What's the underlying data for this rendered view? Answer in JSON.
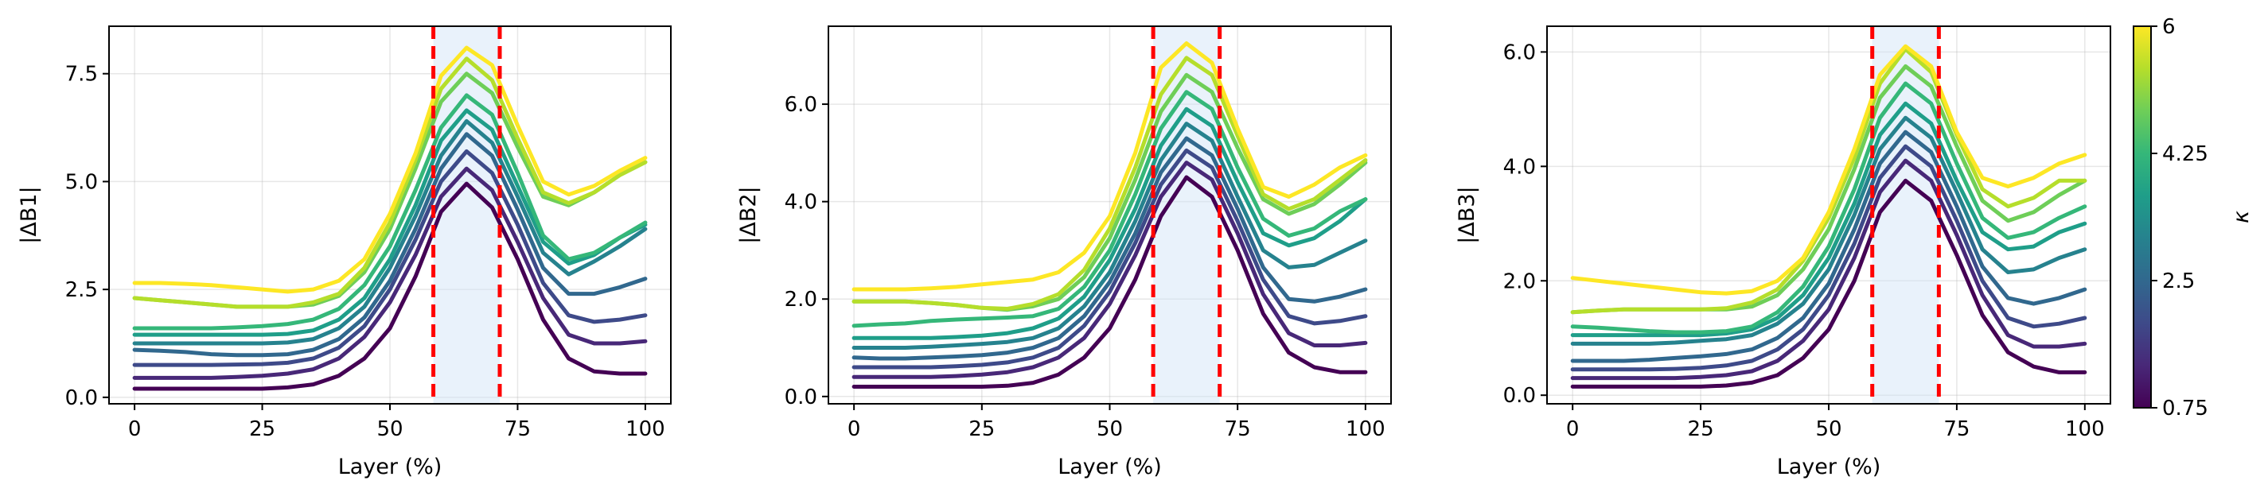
{
  "colors": {
    "marker": "#ff0000",
    "band": "#cfe3f7",
    "colormap": [
      "#440154",
      "#482878",
      "#3e4a89",
      "#31688e",
      "#26828e",
      "#1f9e89",
      "#35b779",
      "#6ece58",
      "#b5de2b",
      "#fde725"
    ]
  },
  "colorbar": {
    "label": "κ",
    "range": [
      0.75,
      6
    ],
    "ticks": [
      "0.75",
      "2.5",
      "4.25",
      "6"
    ]
  },
  "chart_data": [
    {
      "type": "line",
      "title": "",
      "xlabel": "Layer (%)",
      "ylabel": "|ΔB1|",
      "xlim": [
        -5,
        105
      ],
      "ylim": [
        -0.15,
        8.6
      ],
      "xticks": [
        "0",
        "25",
        "50",
        "75",
        "100"
      ],
      "yticks": [
        "0.0",
        "2.5",
        "5.0",
        "7.5"
      ],
      "band": [
        58.5,
        71.5
      ],
      "markers": [
        58.5,
        71.5
      ],
      "x": [
        0,
        5,
        10,
        15,
        20,
        25,
        30,
        35,
        40,
        45,
        50,
        55,
        60,
        65,
        70,
        75,
        80,
        85,
        90,
        95,
        100
      ],
      "series": [
        {
          "name": "κ=0.75",
          "values": [
            0.2,
            0.2,
            0.2,
            0.2,
            0.2,
            0.2,
            0.23,
            0.3,
            0.5,
            0.9,
            1.6,
            2.8,
            4.3,
            4.95,
            4.4,
            3.2,
            1.8,
            0.9,
            0.6,
            0.55,
            0.55
          ]
        },
        {
          "name": "κ=1.33",
          "values": [
            0.45,
            0.45,
            0.45,
            0.45,
            0.47,
            0.5,
            0.55,
            0.65,
            0.9,
            1.4,
            2.2,
            3.3,
            4.65,
            5.3,
            4.8,
            3.6,
            2.3,
            1.45,
            1.25,
            1.25,
            1.3
          ]
        },
        {
          "name": "κ=1.92",
          "values": [
            0.75,
            0.75,
            0.75,
            0.75,
            0.76,
            0.77,
            0.8,
            0.9,
            1.15,
            1.65,
            2.5,
            3.65,
            5.0,
            5.7,
            5.2,
            4.0,
            2.65,
            1.9,
            1.75,
            1.8,
            1.9
          ]
        },
        {
          "name": "κ=2.5",
          "values": [
            1.1,
            1.08,
            1.05,
            1.0,
            0.98,
            0.98,
            1.0,
            1.1,
            1.35,
            1.85,
            2.7,
            3.9,
            5.3,
            6.1,
            5.6,
            4.35,
            3.0,
            2.4,
            2.4,
            2.55,
            2.75
          ]
        },
        {
          "name": "κ=3.08",
          "values": [
            1.25,
            1.25,
            1.25,
            1.25,
            1.25,
            1.25,
            1.27,
            1.35,
            1.6,
            2.1,
            3.0,
            4.2,
            5.6,
            6.4,
            5.9,
            4.65,
            3.35,
            2.85,
            3.15,
            3.5,
            3.9
          ]
        },
        {
          "name": "κ=3.67",
          "values": [
            1.45,
            1.45,
            1.45,
            1.45,
            1.45,
            1.45,
            1.47,
            1.55,
            1.8,
            2.3,
            3.2,
            4.45,
            5.95,
            6.65,
            6.2,
            4.9,
            3.6,
            3.1,
            3.3,
            3.7,
            4.0
          ]
        },
        {
          "name": "κ=4.25",
          "values": [
            1.6,
            1.6,
            1.6,
            1.6,
            1.62,
            1.65,
            1.7,
            1.8,
            2.05,
            2.6,
            3.5,
            4.8,
            6.25,
            7.0,
            6.55,
            5.2,
            3.75,
            3.2,
            3.35,
            3.7,
            4.05
          ]
        },
        {
          "name": "κ=4.83",
          "values": [
            2.3,
            2.25,
            2.2,
            2.15,
            2.1,
            2.1,
            2.1,
            2.15,
            2.35,
            2.9,
            3.9,
            5.3,
            6.85,
            7.5,
            7.05,
            5.8,
            4.65,
            4.45,
            4.75,
            5.15,
            5.45
          ]
        },
        {
          "name": "κ=5.42",
          "values": [
            2.3,
            2.25,
            2.2,
            2.15,
            2.1,
            2.1,
            2.1,
            2.2,
            2.4,
            3.0,
            4.05,
            5.5,
            7.15,
            7.85,
            7.35,
            6.0,
            4.75,
            4.5,
            4.75,
            5.15,
            5.45
          ]
        },
        {
          "name": "κ=6",
          "values": [
            2.65,
            2.65,
            2.63,
            2.6,
            2.55,
            2.5,
            2.45,
            2.5,
            2.7,
            3.2,
            4.25,
            5.65,
            7.45,
            8.1,
            7.7,
            6.3,
            5.0,
            4.7,
            4.9,
            5.25,
            5.55
          ]
        }
      ]
    },
    {
      "type": "line",
      "title": "",
      "xlabel": "Layer (%)",
      "ylabel": "|ΔB2|",
      "xlim": [
        -5,
        105
      ],
      "ylim": [
        -0.15,
        7.6
      ],
      "xticks": [
        "0",
        "25",
        "50",
        "75",
        "100"
      ],
      "yticks": [
        "0.0",
        "2.0",
        "4.0",
        "6.0"
      ],
      "band": [
        58.5,
        71.5
      ],
      "markers": [
        58.5,
        71.5
      ],
      "x": [
        0,
        5,
        10,
        15,
        20,
        25,
        30,
        35,
        40,
        45,
        50,
        55,
        60,
        65,
        70,
        75,
        80,
        85,
        90,
        95,
        100
      ],
      "series": [
        {
          "name": "κ=0.75",
          "values": [
            0.2,
            0.2,
            0.2,
            0.2,
            0.2,
            0.2,
            0.22,
            0.28,
            0.45,
            0.8,
            1.4,
            2.4,
            3.7,
            4.5,
            4.1,
            3.0,
            1.7,
            0.9,
            0.6,
            0.5,
            0.5
          ]
        },
        {
          "name": "κ=1.33",
          "values": [
            0.4,
            0.4,
            0.4,
            0.4,
            0.42,
            0.45,
            0.5,
            0.6,
            0.8,
            1.2,
            1.9,
            2.9,
            4.1,
            4.8,
            4.45,
            3.35,
            2.1,
            1.3,
            1.05,
            1.05,
            1.1
          ]
        },
        {
          "name": "κ=1.92",
          "values": [
            0.6,
            0.6,
            0.6,
            0.6,
            0.62,
            0.65,
            0.7,
            0.8,
            1.0,
            1.45,
            2.15,
            3.15,
            4.35,
            5.05,
            4.7,
            3.6,
            2.4,
            1.65,
            1.5,
            1.55,
            1.65
          ]
        },
        {
          "name": "κ=2.5",
          "values": [
            0.8,
            0.78,
            0.78,
            0.8,
            0.82,
            0.85,
            0.9,
            1.0,
            1.2,
            1.65,
            2.35,
            3.35,
            4.6,
            5.3,
            4.95,
            3.85,
            2.65,
            2.0,
            1.95,
            2.05,
            2.2
          ]
        },
        {
          "name": "κ=3.08",
          "values": [
            1.0,
            1.0,
            1.0,
            1.02,
            1.05,
            1.08,
            1.12,
            1.2,
            1.4,
            1.85,
            2.55,
            3.6,
            4.85,
            5.6,
            5.25,
            4.1,
            3.0,
            2.65,
            2.7,
            2.95,
            3.2
          ]
        },
        {
          "name": "κ=3.67",
          "values": [
            1.2,
            1.2,
            1.2,
            1.2,
            1.22,
            1.25,
            1.3,
            1.4,
            1.6,
            2.05,
            2.8,
            3.85,
            5.15,
            5.9,
            5.55,
            4.4,
            3.35,
            3.1,
            3.25,
            3.6,
            4.05
          ]
        },
        {
          "name": "κ=4.25",
          "values": [
            1.45,
            1.48,
            1.5,
            1.55,
            1.58,
            1.6,
            1.62,
            1.65,
            1.8,
            2.25,
            3.0,
            4.15,
            5.5,
            6.25,
            5.9,
            4.7,
            3.65,
            3.3,
            3.45,
            3.8,
            4.05
          ]
        },
        {
          "name": "κ=4.83",
          "values": [
            1.95,
            1.95,
            1.95,
            1.92,
            1.88,
            1.82,
            1.78,
            1.85,
            2.0,
            2.45,
            3.25,
            4.45,
            5.85,
            6.6,
            6.25,
            5.1,
            4.05,
            3.75,
            3.95,
            4.35,
            4.8
          ]
        },
        {
          "name": "κ=5.42",
          "values": [
            1.95,
            1.95,
            1.95,
            1.92,
            1.88,
            1.82,
            1.8,
            1.9,
            2.1,
            2.6,
            3.45,
            4.7,
            6.2,
            6.95,
            6.6,
            5.35,
            4.15,
            3.85,
            4.05,
            4.45,
            4.85
          ]
        },
        {
          "name": "κ=6",
          "values": [
            2.2,
            2.2,
            2.2,
            2.22,
            2.25,
            2.3,
            2.35,
            2.4,
            2.55,
            2.95,
            3.7,
            5.0,
            6.75,
            7.25,
            6.85,
            5.5,
            4.3,
            4.1,
            4.35,
            4.7,
            4.95
          ]
        }
      ]
    },
    {
      "type": "line",
      "title": "",
      "xlabel": "Layer (%)",
      "ylabel": "|ΔB3|",
      "xlim": [
        -5,
        105
      ],
      "ylim": [
        -0.15,
        6.45
      ],
      "xticks": [
        "0",
        "25",
        "50",
        "75",
        "100"
      ],
      "yticks": [
        "0.0",
        "2.0",
        "4.0",
        "6.0"
      ],
      "band": [
        58.5,
        71.5
      ],
      "markers": [
        58.5,
        71.5
      ],
      "x": [
        0,
        5,
        10,
        15,
        20,
        25,
        30,
        35,
        40,
        45,
        50,
        55,
        60,
        65,
        70,
        75,
        80,
        85,
        90,
        95,
        100
      ],
      "series": [
        {
          "name": "κ=0.75",
          "values": [
            0.15,
            0.15,
            0.15,
            0.15,
            0.15,
            0.15,
            0.17,
            0.22,
            0.35,
            0.65,
            1.15,
            2.0,
            3.2,
            3.75,
            3.4,
            2.45,
            1.4,
            0.75,
            0.5,
            0.4,
            0.4
          ]
        },
        {
          "name": "κ=1.33",
          "values": [
            0.3,
            0.3,
            0.3,
            0.3,
            0.3,
            0.32,
            0.35,
            0.42,
            0.6,
            0.95,
            1.5,
            2.4,
            3.55,
            4.1,
            3.75,
            2.8,
            1.75,
            1.05,
            0.85,
            0.85,
            0.9
          ]
        },
        {
          "name": "κ=1.92",
          "values": [
            0.45,
            0.45,
            0.45,
            0.45,
            0.46,
            0.48,
            0.52,
            0.6,
            0.8,
            1.15,
            1.75,
            2.65,
            3.8,
            4.35,
            4.0,
            3.05,
            2.0,
            1.35,
            1.2,
            1.25,
            1.35
          ]
        },
        {
          "name": "κ=2.5",
          "values": [
            0.6,
            0.6,
            0.6,
            0.62,
            0.65,
            0.68,
            0.72,
            0.8,
            1.0,
            1.35,
            1.95,
            2.9,
            4.05,
            4.6,
            4.25,
            3.3,
            2.25,
            1.7,
            1.6,
            1.7,
            1.85
          ]
        },
        {
          "name": "κ=3.08",
          "values": [
            0.9,
            0.9,
            0.9,
            0.9,
            0.92,
            0.95,
            0.98,
            1.05,
            1.25,
            1.6,
            2.2,
            3.15,
            4.3,
            4.85,
            4.5,
            3.55,
            2.55,
            2.15,
            2.2,
            2.4,
            2.55
          ]
        },
        {
          "name": "κ=3.67",
          "values": [
            1.05,
            1.05,
            1.05,
            1.05,
            1.05,
            1.05,
            1.08,
            1.15,
            1.35,
            1.75,
            2.4,
            3.35,
            4.55,
            5.1,
            4.75,
            3.75,
            2.85,
            2.55,
            2.6,
            2.85,
            3.0
          ]
        },
        {
          "name": "κ=4.25",
          "values": [
            1.2,
            1.18,
            1.15,
            1.12,
            1.1,
            1.1,
            1.12,
            1.2,
            1.45,
            1.9,
            2.6,
            3.6,
            4.85,
            5.45,
            5.1,
            4.05,
            3.1,
            2.75,
            2.85,
            3.1,
            3.3
          ]
        },
        {
          "name": "κ=4.83",
          "values": [
            1.45,
            1.48,
            1.5,
            1.5,
            1.5,
            1.5,
            1.5,
            1.55,
            1.75,
            2.2,
            2.9,
            3.95,
            5.2,
            5.75,
            5.4,
            4.35,
            3.4,
            3.05,
            3.2,
            3.5,
            3.75
          ]
        },
        {
          "name": "κ=5.42",
          "values": [
            1.45,
            1.48,
            1.5,
            1.5,
            1.5,
            1.5,
            1.52,
            1.62,
            1.85,
            2.35,
            3.1,
            4.15,
            5.45,
            6.05,
            5.65,
            4.55,
            3.6,
            3.3,
            3.45,
            3.75,
            3.75
          ]
        },
        {
          "name": "κ=6",
          "values": [
            2.05,
            2.0,
            1.95,
            1.9,
            1.85,
            1.8,
            1.78,
            1.82,
            2.0,
            2.4,
            3.2,
            4.3,
            5.6,
            6.1,
            5.75,
            4.6,
            3.8,
            3.65,
            3.8,
            4.05,
            4.2
          ]
        }
      ]
    }
  ]
}
